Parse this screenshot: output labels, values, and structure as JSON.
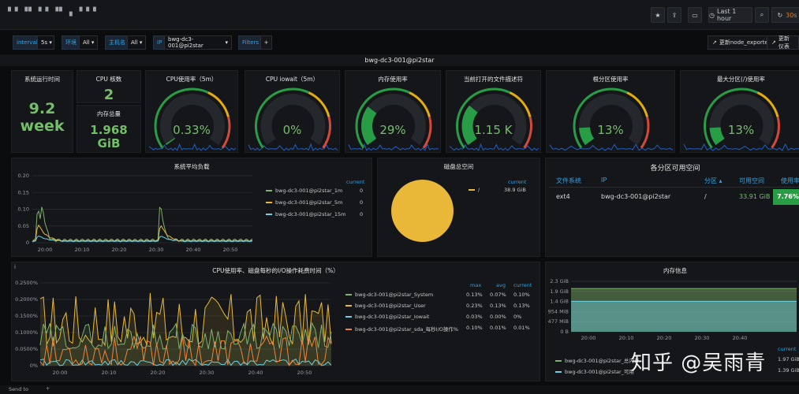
{
  "header": {
    "title_blur": "▘▘▝▘▝▝ ▝▘ ▖▝▝▝",
    "time_range": "Last 1 hour",
    "refresh": "30s"
  },
  "vars": {
    "interval_label": "interval",
    "interval_value": "5s",
    "env_label": "环境",
    "env_value": "All",
    "host_label": "主机名",
    "host_value": "All",
    "ip_label": "IP",
    "ip_value": "bwg-dc3-001@pi2star",
    "filters_label": "Filters",
    "add": "+",
    "update_exporter": "更新node_exporter",
    "update_dash": "更新仪表"
  },
  "row": {
    "title": "bwg-dc3-001@pi2star"
  },
  "stats": {
    "uptime": {
      "title": "系统运行时间",
      "value": "9.2",
      "unit": "week"
    },
    "cpu_cores": {
      "title": "CPU 核数",
      "value": "2"
    },
    "mem_total": {
      "title": "内存总量",
      "value": "1.968",
      "unit": "GiB"
    }
  },
  "gauges": [
    {
      "title": "CPU使用率（5m）",
      "value": "0.33%",
      "level": 0.0033
    },
    {
      "title": "CPU iowait（5m）",
      "value": "0%",
      "level": 0.0
    },
    {
      "title": "内存使用率",
      "value": "29%",
      "level": 0.29
    },
    {
      "title": "当前打开的文件描述符",
      "value": "1.15 K",
      "level": 0.3
    },
    {
      "title": "根分区使用率",
      "value": "13%",
      "level": 0.13
    },
    {
      "title": "最大分区(/)使用率",
      "value": "13%",
      "level": 0.13
    }
  ],
  "load": {
    "title": "系统平均负载",
    "current_label": "current",
    "y_ticks": [
      "0.20",
      "0.15",
      "0.10",
      "0.05",
      "0"
    ],
    "x_ticks": [
      "20:00",
      "20:10",
      "20:20",
      "20:30",
      "20:40",
      "20:50"
    ],
    "legend": [
      {
        "name": "bwg-dc3-001@pi2star_1m",
        "value": "0",
        "color": "#7eb26d"
      },
      {
        "name": "bwg-dc3-001@pi2star_5m",
        "value": "0",
        "color": "#eab839"
      },
      {
        "name": "bwg-dc3-001@pi2star_15m",
        "value": "0",
        "color": "#6ed0e0"
      }
    ]
  },
  "disk_total": {
    "title": "磁盘总空间",
    "current_label": "current",
    "legend_name": "/",
    "legend_value": "38.9 GiB",
    "color": "#eab839"
  },
  "partitions": {
    "title": "各分区可用空间",
    "headers": [
      "文件系统",
      "IP",
      "分区 ▴",
      "可用空间",
      "使用率"
    ],
    "row": [
      "ext4",
      "bwg-dc3-001@pi2star",
      "/",
      "33.91 GiB",
      "7.76%"
    ]
  },
  "cpu_io": {
    "title": "CPU使用率、磁盘每秒的I/O操作耗费时间（%）",
    "y_ticks": [
      "0.2500%",
      "0.2000%",
      "0.1500%",
      "0.1000%",
      "0.0500%",
      "0%"
    ],
    "x_ticks": [
      "20:00",
      "20:10",
      "20:20",
      "20:30",
      "20:40",
      "20:50"
    ],
    "col_max": "max",
    "col_avg": "avg",
    "col_current": "current",
    "legend": [
      {
        "name": "bwg-dc3-001@pi2star_System",
        "max": "0.13%",
        "avg": "0.07%",
        "current": "0.10%",
        "color": "#7eb26d"
      },
      {
        "name": "bwg-dc3-001@pi2star_User",
        "max": "0.23%",
        "avg": "0.13%",
        "current": "0.13%",
        "color": "#eab839"
      },
      {
        "name": "bwg-dc3-001@pi2star_Iowait",
        "max": "0.03%",
        "avg": "0.00%",
        "current": "0%",
        "color": "#6ed0e0"
      },
      {
        "name": "bwg-dc3-001@pi2star_sda_每秒I/O操作%",
        "max": "0.10%",
        "avg": "0.01%",
        "current": "0.01%",
        "color": "#ef843c"
      }
    ]
  },
  "mem_info": {
    "title": "内存信息",
    "y_ticks": [
      "2.3 GiB",
      "1.9 GiB",
      "1.4 GiB",
      "954 MiB",
      "477 MiB",
      "0 B"
    ],
    "x_ticks": [
      "20:00",
      "20:10",
      "20:20",
      "20:30",
      "20:40"
    ],
    "current_label": "current",
    "legend": [
      {
        "name": "bwg-dc3-001@pi2star_总内存",
        "value": "1.97 GiB",
        "color": "#7eb26d"
      },
      {
        "name": "bwg-dc3-001@pi2star_可用",
        "value": "1.39 GiB",
        "color": "#6ed0e0"
      }
    ]
  },
  "bottom": {
    "send_to": "Send to",
    "plus": "+"
  },
  "watermark": "知乎 @吴雨青"
}
